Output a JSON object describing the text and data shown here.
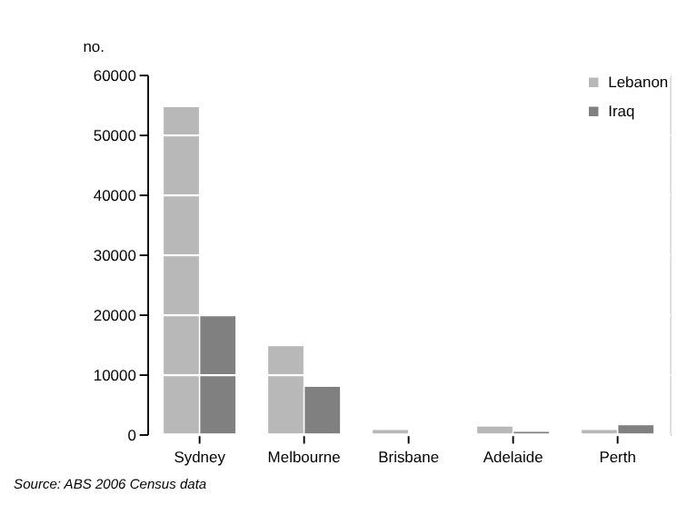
{
  "chart_data": {
    "type": "bar",
    "ylabel": "no.",
    "categories": [
      "Sydney",
      "Melbourne",
      "Brisbane",
      "Adelaide",
      "Perth"
    ],
    "series": [
      {
        "name": "Lebanon",
        "color": "#b8b8b8",
        "values": [
          54700,
          14800,
          800,
          1400,
          800
        ]
      },
      {
        "name": "Iraq",
        "color": "#808080",
        "values": [
          19900,
          8000,
          null,
          500,
          1600
        ]
      }
    ],
    "ylim": [
      0,
      60000
    ],
    "yticks": [
      0,
      10000,
      20000,
      30000,
      40000,
      50000,
      60000
    ],
    "grid": "y",
    "legend": "top right",
    "annotations": [
      "Source: ABS 2006 Census data"
    ]
  }
}
